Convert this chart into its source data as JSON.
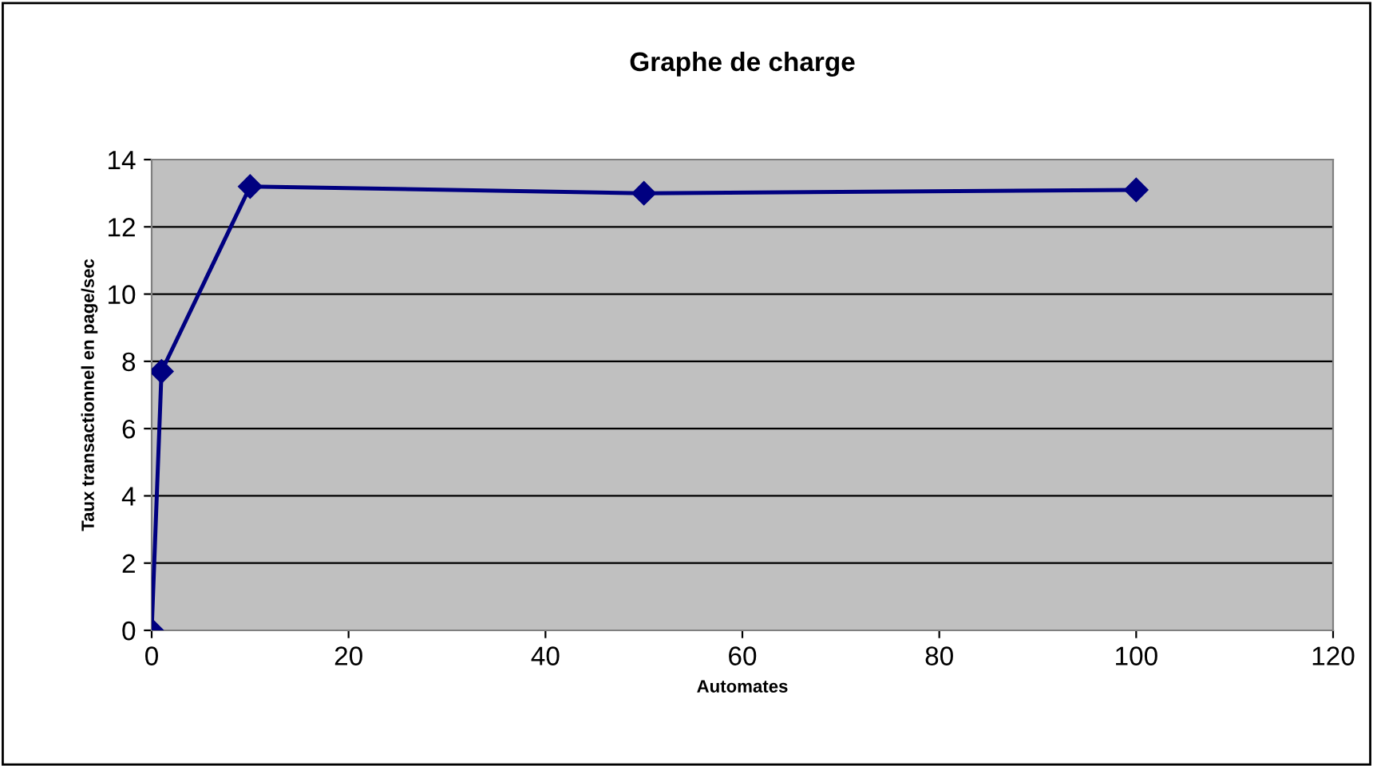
{
  "chart_data": {
    "type": "line",
    "title": "Graphe de charge",
    "xlabel": "Automates",
    "ylabel": "Taux transactionnel en page/sec",
    "x": [
      0,
      1,
      10,
      50,
      100
    ],
    "series": [
      {
        "color": "#000080",
        "values": [
          0,
          7.7,
          13.2,
          13.0,
          13.1
        ]
      }
    ],
    "xlim": [
      0,
      120
    ],
    "xticks": [
      0,
      20,
      40,
      60,
      80,
      100,
      120
    ],
    "ylim": [
      0,
      14
    ],
    "yticks": [
      0,
      2,
      4,
      6,
      8,
      10,
      12,
      14
    ],
    "grid": "y",
    "marker": "diamond",
    "line_style": "solid"
  }
}
